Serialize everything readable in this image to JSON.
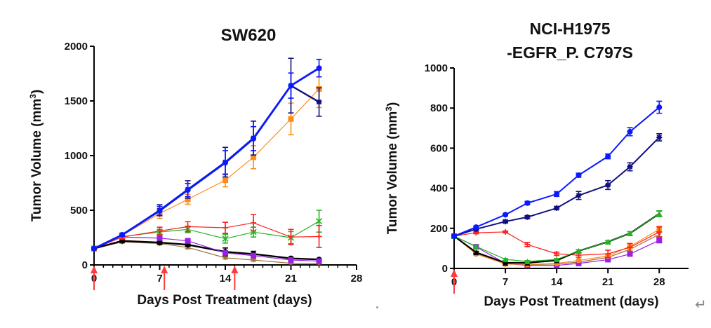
{
  "page": {
    "return_glyph": "↵"
  },
  "chart_data": [
    {
      "type": "line",
      "title": "SW620",
      "title_lines": [
        "SW620"
      ],
      "xlabel": "Days Post Treatment (days)",
      "ylabel": "Tumor Volume (mm",
      "ylabel_sup": "3",
      "ylabel_close": ")",
      "xlim": [
        0,
        28
      ],
      "ylim": [
        0,
        2000
      ],
      "xticks": [
        0,
        7,
        14,
        21,
        28
      ],
      "xticks_labels": [
        "0",
        "7",
        "14",
        "21",
        "28"
      ],
      "minor_xtick_step": 1,
      "yticks": [
        0,
        500,
        1000,
        1500,
        2000
      ],
      "yticks_labels": [
        "0",
        "500",
        "1000",
        "1500",
        "2000"
      ],
      "grid": false,
      "legend": "none",
      "dosing_arrows_days": [
        0,
        7.5,
        15
      ],
      "arrow_color": "#ff3b3b",
      "x": [
        0,
        3,
        7,
        10,
        14,
        17,
        21,
        24
      ],
      "series": [
        {
          "name": "brown",
          "color": "#a0743c",
          "marker": "triangle-down",
          "width": 1.2,
          "values": [
            150,
            210,
            195,
            160,
            65,
            45,
            15,
            15
          ],
          "errors": [
            10,
            10,
            12,
            12,
            10,
            10,
            6,
            6
          ]
        },
        {
          "name": "black",
          "color": "#000000",
          "marker": "circle",
          "width": 2.4,
          "values": [
            150,
            220,
            205,
            185,
            120,
            100,
            60,
            50
          ],
          "errors": [
            10,
            12,
            14,
            15,
            35,
            25,
            12,
            8
          ]
        },
        {
          "name": "purple",
          "color": "#9b1fe8",
          "marker": "square",
          "width": 1.2,
          "values": [
            150,
            255,
            245,
            220,
            110,
            85,
            45,
            35
          ],
          "errors": [
            10,
            12,
            15,
            20,
            15,
            12,
            8,
            6
          ]
        },
        {
          "name": "green",
          "color": "#22b522",
          "marker": "x",
          "width": 1.2,
          "values": [
            150,
            260,
            300,
            325,
            240,
            300,
            250,
            400
          ],
          "errors": [
            10,
            15,
            25,
            30,
            40,
            45,
            55,
            100
          ]
        },
        {
          "name": "red",
          "color": "#ff1f1f",
          "marker": "plus",
          "width": 1.2,
          "values": [
            150,
            255,
            310,
            350,
            340,
            385,
            255,
            260
          ],
          "errors": [
            10,
            15,
            35,
            45,
            50,
            75,
            70,
            100
          ]
        },
        {
          "name": "orange",
          "color": "#ff8c1a",
          "marker": "square",
          "width": 1.2,
          "values": [
            150,
            270,
            470,
            600,
            775,
            985,
            1335,
            1610
          ],
          "errors": [
            10,
            15,
            45,
            45,
            60,
            105,
            145,
            170
          ]
        },
        {
          "name": "navy",
          "color": "#101080",
          "marker": "star",
          "width": 2.4,
          "values": [
            150,
            275,
            500,
            690,
            940,
            1160,
            1640,
            1490
          ],
          "errors": [
            10,
            15,
            50,
            80,
            135,
            155,
            250,
            130
          ]
        },
        {
          "name": "blue",
          "color": "#0a1aff",
          "marker": "circle",
          "width": 2.8,
          "values": [
            150,
            275,
            495,
            685,
            935,
            1155,
            1640,
            1800
          ],
          "errors": [
            10,
            15,
            40,
            60,
            110,
            110,
            115,
            80
          ]
        }
      ]
    },
    {
      "type": "line",
      "title": "NCI-H1975 -EGFR_P. C797S",
      "title_lines": [
        "NCI-H1975",
        "-EGFR_P. C797S"
      ],
      "xlabel": "Days Post Treatment (days)",
      "ylabel": "Tumor Volume (mm",
      "ylabel_sup": "3",
      "ylabel_close": ")",
      "xlim": [
        0,
        32
      ],
      "ylim": [
        0,
        1000
      ],
      "xticks": [
        0,
        7,
        14,
        21,
        28
      ],
      "xticks_labels": [
        "0",
        "7",
        "14",
        "21",
        "28"
      ],
      "minor_xtick_step": null,
      "yticks": [
        0,
        200,
        400,
        600,
        800,
        1000
      ],
      "yticks_labels": [
        "0",
        "200",
        "400",
        "600",
        "800",
        "1000"
      ],
      "grid": false,
      "legend": "none",
      "dosing_arrows_days": [
        0
      ],
      "arrow_color": "#ff3b3b",
      "x": [
        0,
        3,
        7,
        10,
        14,
        17,
        21,
        24,
        28
      ],
      "series": [
        {
          "name": "brown",
          "color": "#a0743c",
          "marker": "triangle-down",
          "width": 1.2,
          "values": [
            161,
            75,
            22,
            18,
            22,
            32,
            55,
            95,
            170
          ],
          "errors": [
            5,
            5,
            3,
            3,
            3,
            4,
            6,
            8,
            12
          ]
        },
        {
          "name": "purple",
          "color": "#9b1fe8",
          "marker": "square",
          "width": 1.2,
          "values": [
            161,
            108,
            25,
            15,
            15,
            25,
            44,
            72,
            140
          ],
          "errors": [
            5,
            5,
            3,
            3,
            3,
            4,
            5,
            6,
            12
          ]
        },
        {
          "name": "orange",
          "color": "#ff8c1a",
          "marker": "circle",
          "width": 1.2,
          "values": [
            161,
            72,
            22,
            20,
            25,
            40,
            62,
            110,
            195
          ],
          "errors": [
            5,
            5,
            3,
            3,
            3,
            5,
            6,
            10,
            15
          ]
        },
        {
          "name": "red",
          "color": "#ff1f1f",
          "marker": "plus",
          "width": 1.2,
          "values": [
            161,
            178,
            182,
            119,
            73,
            66,
            73,
            105,
            182
          ],
          "errors": [
            5,
            5,
            5,
            10,
            8,
            10,
            18,
            20,
            25
          ]
        },
        {
          "name": "black",
          "color": "#000000",
          "marker": "triangle-up",
          "width": 2.2,
          "values": [
            161,
            80,
            28,
            28,
            40,
            87,
            133,
            175,
            273
          ],
          "errors": [
            5,
            5,
            3,
            3,
            4,
            6,
            6,
            8,
            14
          ]
        },
        {
          "name": "green",
          "color": "#22b522",
          "marker": "triangle-up",
          "width": 1.2,
          "values": [
            161,
            110,
            45,
            35,
            45,
            87,
            133,
            175,
            273
          ],
          "errors": [
            5,
            5,
            4,
            4,
            4,
            6,
            6,
            8,
            14
          ]
        },
        {
          "name": "navy",
          "color": "#101080",
          "marker": "star",
          "width": 2.0,
          "values": [
            161,
            196,
            234,
            256,
            301,
            364,
            416,
            507,
            654
          ],
          "errors": [
            5,
            6,
            6,
            7,
            8,
            20,
            22,
            20,
            18
          ]
        },
        {
          "name": "blue",
          "color": "#0a1aff",
          "marker": "circle",
          "width": 2.0,
          "values": [
            161,
            206,
            268,
            326,
            371,
            465,
            559,
            682,
            804
          ],
          "errors": [
            5,
            6,
            6,
            8,
            12,
            10,
            12,
            20,
            30
          ]
        }
      ]
    }
  ]
}
